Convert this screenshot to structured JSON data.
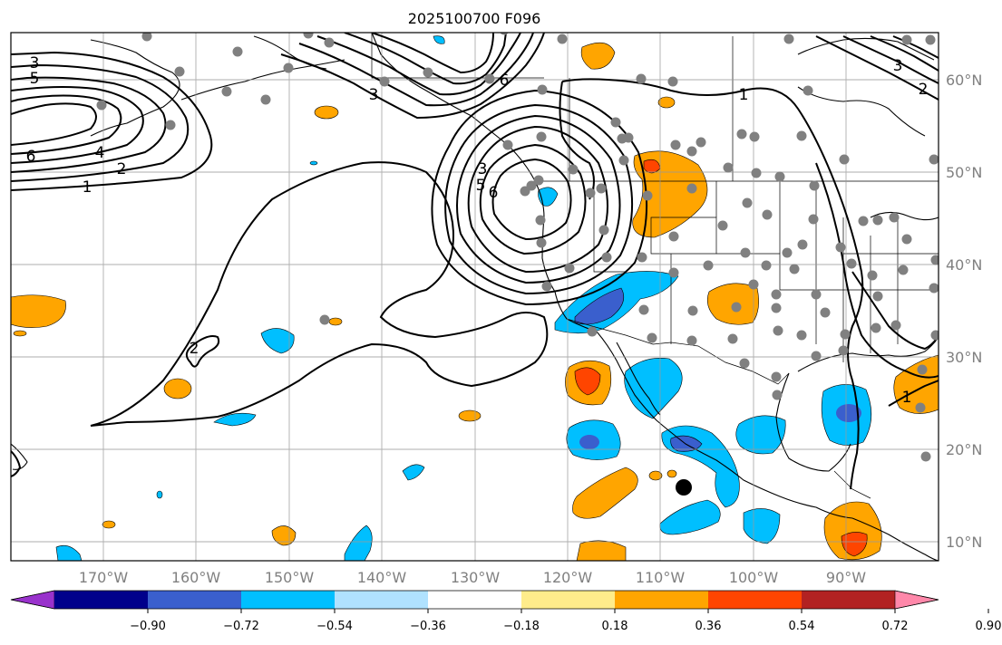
{
  "title": "2025100700 F096",
  "map": {
    "projection": "PlateCarree",
    "lon_range": [
      -180,
      -80
    ],
    "lat_range": [
      8,
      65
    ],
    "gridlines": true,
    "x_ticks": [
      "170°W",
      "160°W",
      "150°W",
      "140°W",
      "130°W",
      "120°W",
      "110°W",
      "100°W",
      "90°W"
    ],
    "y_ticks": [
      "10°N",
      "20°N",
      "30°N",
      "40°N",
      "50°N",
      "60°N"
    ],
    "y_tick_side": "right",
    "contour_labels": [
      "1",
      "2",
      "3",
      "4",
      "5",
      "6"
    ],
    "marker": {
      "name": "large-black-dot",
      "lon": -107.4,
      "lat": 16.0
    }
  },
  "colorbar": {
    "orientation": "horizontal",
    "extend": "both",
    "colors": [
      "#9932CC",
      "#00008B",
      "#3A5FCD",
      "#00BFFF",
      "#B0E2FF",
      "#FFFFFF",
      "#FFEC8B",
      "#FFA500",
      "#FF4500",
      "#B22222",
      "#FF88AA"
    ],
    "tick_labels": [
      "−0.90",
      "−0.72",
      "−0.54",
      "−0.36",
      "−0.18",
      "0.18",
      "0.36",
      "0.54",
      "0.72",
      "0.90"
    ]
  }
}
